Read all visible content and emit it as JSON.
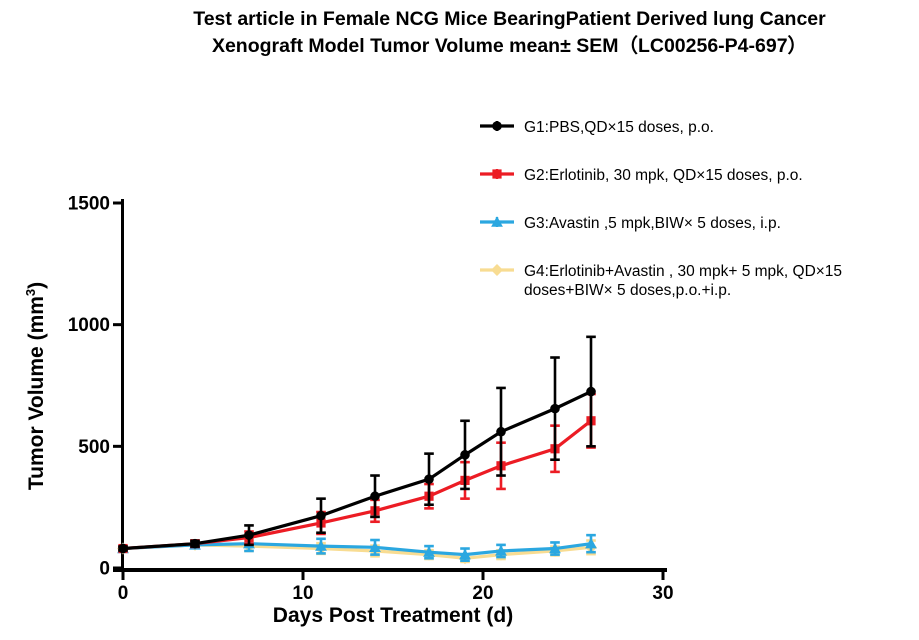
{
  "title": {
    "line1": "Test article in Female NCG Mice  BearingPatient Derived lung Cancer",
    "line2": "Xenograft Model Tumor Volume mean± SEM（LC00256-P4-697）"
  },
  "axes": {
    "xlabel": "Days Post Treatment (d)",
    "ylabel_prefix": "Tumor Volume (mm",
    "ylabel_sup": "3",
    "ylabel_suffix": ")"
  },
  "chart_data": {
    "type": "line",
    "title": "Test article in Female NCG Mice  BearingPatient Derived lung Cancer Xenograft Model Tumor Volume mean± SEM（LC00256-P4-697）",
    "xlabel": "Days Post Treatment (d)",
    "ylabel": "Tumor Volume (mm3)",
    "x": [
      0,
      4,
      7,
      11,
      14,
      17,
      19,
      21,
      24,
      26
    ],
    "xlim": [
      0,
      30
    ],
    "ylim": [
      0,
      1500
    ],
    "xticks": [
      0,
      10,
      20,
      30
    ],
    "yticks": [
      0,
      500,
      1000,
      1500
    ],
    "grid": false,
    "legend_position": "top right",
    "error_bars": "±SEM",
    "series": [
      {
        "name": "G1:PBS,QD×15 doses, p.o.",
        "color": "#000000",
        "marker": "circle",
        "values": [
          80,
          100,
          135,
          215,
          295,
          365,
          465,
          560,
          655,
          725
        ],
        "sem": [
          8,
          12,
          40,
          70,
          85,
          105,
          140,
          180,
          210,
          225
        ]
      },
      {
        "name": "G2:Erlotinib, 30 mpk, QD×15 doses, p.o.",
        "color": "#EC1C24",
        "marker": "square",
        "values": [
          80,
          100,
          125,
          185,
          235,
          295,
          360,
          420,
          490,
          605
        ],
        "sem": [
          8,
          12,
          25,
          45,
          45,
          50,
          75,
          95,
          95,
          110
        ]
      },
      {
        "name": "G3:Avastin ,5 mpk,BIW× 5 doses, i.p.",
        "color": "#2BA7E0",
        "marker": "triangle",
        "values": [
          80,
          95,
          100,
          90,
          85,
          65,
          55,
          70,
          80,
          100
        ],
        "sem": [
          8,
          12,
          30,
          30,
          30,
          25,
          25,
          25,
          25,
          35
        ]
      },
      {
        "name": "G4:Erlotinib+Avastin , 30 mpk+ 5 mpk, QD×15 doses+BIW× 5 doses,p.o.+i.p.",
        "color": "#F8DC92",
        "marker": "diamond",
        "values": [
          80,
          95,
          90,
          80,
          70,
          55,
          40,
          55,
          70,
          85
        ],
        "sem": [
          6,
          10,
          20,
          22,
          22,
          18,
          15,
          18,
          18,
          28
        ]
      }
    ]
  }
}
